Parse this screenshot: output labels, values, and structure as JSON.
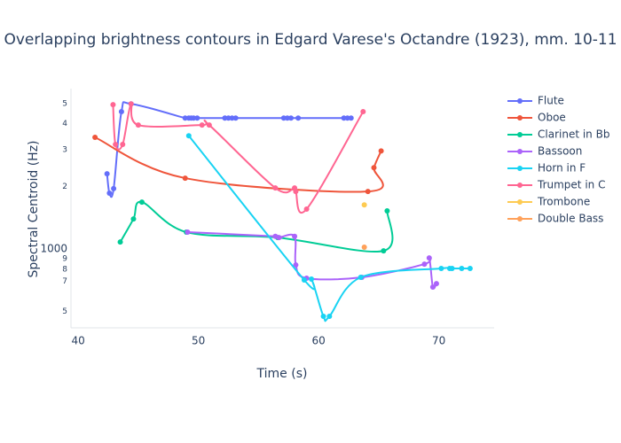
{
  "chart_data": {
    "type": "line",
    "title": "Overlapping brightness contours in Edgard Varese's Octandre (1923), mm. 10-11",
    "x_label": "Time (s)",
    "y_label": "Spectral Centroid (Hz)",
    "xlim": [
      39.4,
      74.6
    ],
    "xticks": [
      40,
      50,
      60,
      70
    ],
    "ylim": [
      418,
      5900
    ],
    "y_scale": "log",
    "yticks": [
      {
        "value": 500,
        "label": "5"
      },
      {
        "value": 700,
        "label": "7"
      },
      {
        "value": 800,
        "label": "8"
      },
      {
        "value": 900,
        "label": "9"
      },
      1000,
      {
        "value": 2000,
        "label": "2"
      },
      {
        "value": 3000,
        "label": "3"
      },
      {
        "value": 4000,
        "label": "4"
      },
      {
        "value": 5000,
        "label": "5"
      }
    ],
    "grid": false,
    "legend": "right",
    "series": [
      {
        "name": "Flute",
        "color": "#636efa",
        "x": [
          42.4,
          42.6,
          42.95,
          43.6,
          44.4,
          48.9,
          49.2,
          49.4,
          49.6,
          49.9,
          52.2,
          52.5,
          52.8,
          53.1,
          57.1,
          57.4,
          57.7,
          58.3,
          62.1,
          62.4,
          62.7
        ],
        "values": [
          2300,
          1855,
          1950,
          4570,
          4980,
          4260,
          4260,
          4260,
          4260,
          4260,
          4260,
          4260,
          4260,
          4260,
          4260,
          4260,
          4260,
          4260,
          4260,
          4260,
          4260
        ]
      },
      {
        "name": "Oboe",
        "color": "#EF553B",
        "x": [
          41.4,
          48.9,
          64.1,
          64.6,
          65.2
        ],
        "values": [
          3440,
          2190,
          1890,
          2460,
          2960
        ]
      },
      {
        "name": "Clarinet in Bb",
        "color": "#00cc96",
        "x": [
          43.5,
          44.6,
          45.3,
          49.0,
          56.6,
          65.4,
          65.7
        ],
        "values": [
          1080,
          1395,
          1680,
          1205,
          1135,
          980,
          1525
        ]
      },
      {
        "name": "Bassoon",
        "color": "#ab63fa",
        "x": [
          49.1,
          56.4,
          56.7,
          58.0,
          58.1,
          59.0,
          63.6,
          68.8,
          69.2,
          69.5,
          69.8
        ],
        "values": [
          1205,
          1150,
          1135,
          1150,
          838,
          724,
          731,
          846,
          906,
          656,
          682
        ]
      },
      {
        "name": "Horn in F",
        "color": "#19d3f3",
        "x": [
          49.2,
          58.8,
          59.4,
          60.4,
          60.9,
          63.5,
          70.2,
          70.9,
          71.1,
          71.9,
          72.6
        ],
        "values": [
          3500,
          710,
          717,
          475,
          475,
          731,
          806,
          806,
          806,
          806,
          806
        ]
      },
      {
        "name": "Trumpet in C",
        "color": "#FF6692",
        "x": [
          42.9,
          43.1,
          43.7,
          44.4,
          45.0,
          50.3,
          50.9,
          56.4,
          58.0,
          58.1,
          59.0,
          63.7
        ],
        "values": [
          4940,
          3180,
          3180,
          4980,
          3940,
          3940,
          3940,
          1965,
          1965,
          1890,
          1555,
          4570
        ]
      },
      {
        "name": "Trombone",
        "color": "#FECB52",
        "x": [
          63.8
        ],
        "values": [
          1630
        ]
      },
      {
        "name": "Double Bass",
        "color": "#FFA15A",
        "x": [
          63.8
        ],
        "values": [
          1020
        ]
      }
    ]
  }
}
